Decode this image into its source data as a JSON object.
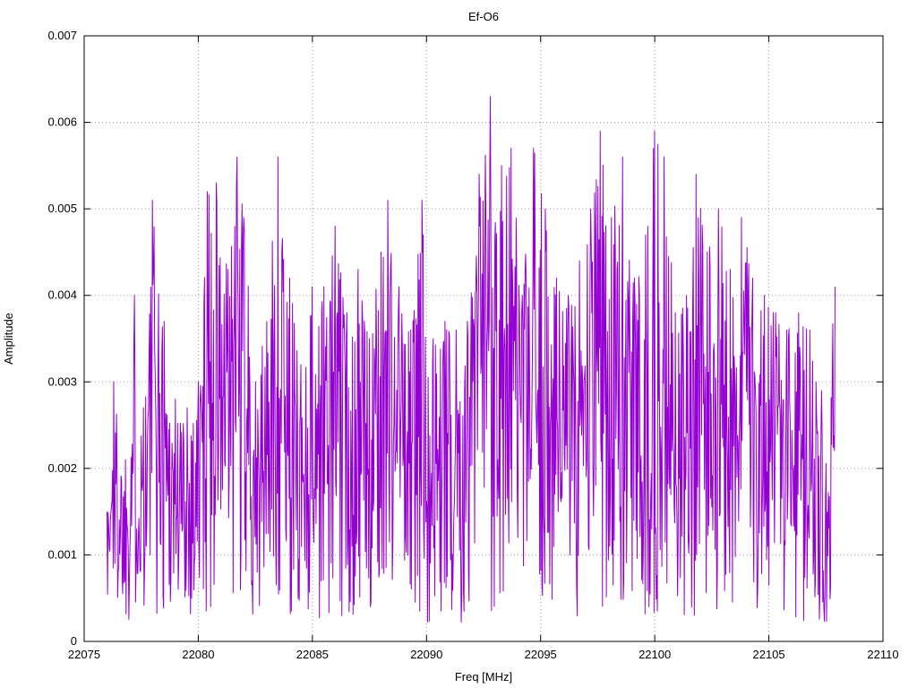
{
  "chart_data": {
    "type": "line",
    "title": "Ef-O6",
    "xlabel": "Freq [MHz]",
    "ylabel": "Amplitude",
    "xlim": [
      22075,
      22110
    ],
    "ylim": [
      0,
      0.007
    ],
    "x_ticks": [
      22075,
      22080,
      22085,
      22090,
      22095,
      22100,
      22105,
      22110
    ],
    "x_tick_labels": [
      "22075",
      "22080",
      "22085",
      "22090",
      "22095",
      "22100",
      "22105",
      "22110"
    ],
    "y_ticks": [
      0,
      0.001,
      0.002,
      0.003,
      0.004,
      0.005,
      0.006,
      0.007
    ],
    "y_tick_labels": [
      "0",
      "0.001",
      "0.002",
      "0.003",
      "0.004",
      "0.005",
      "0.006",
      "0.007"
    ],
    "grid": true,
    "grid_style": "dotted",
    "legend_position": "none",
    "line_color": "#9400d3",
    "background_color": "#ffffff",
    "series": [
      {
        "name": "Ef-O6",
        "description": "Dense noise-like amplitude spectrum; values oscillate between a low floor and an envelope of peak amplitudes read from the plot.",
        "x_start": 22076.0,
        "x_end": 22107.9,
        "n_points": 1300,
        "noise_seed": 1337,
        "min_value": 0.0002,
        "typical_level": 0.0022,
        "peak_value": 0.0063,
        "peak_x": 22092.8,
        "envelope": [
          [
            22076.0,
            0.0015
          ],
          [
            22076.3,
            0.003
          ],
          [
            22076.8,
            0.0021
          ],
          [
            22077.2,
            0.004
          ],
          [
            22077.6,
            0.0027
          ],
          [
            22078.0,
            0.0051
          ],
          [
            22078.5,
            0.0037
          ],
          [
            22079.0,
            0.0028
          ],
          [
            22079.5,
            0.0027
          ],
          [
            22080.0,
            0.003
          ],
          [
            22080.4,
            0.0052
          ],
          [
            22080.8,
            0.0053
          ],
          [
            22081.3,
            0.0043
          ],
          [
            22081.7,
            0.0056
          ],
          [
            22082.0,
            0.0049
          ],
          [
            22082.5,
            0.003
          ],
          [
            22083.0,
            0.0037
          ],
          [
            22083.5,
            0.0056
          ],
          [
            22084.0,
            0.0042
          ],
          [
            22084.5,
            0.0032
          ],
          [
            22085.0,
            0.0041
          ],
          [
            22085.5,
            0.0041
          ],
          [
            22086.0,
            0.0048
          ],
          [
            22086.5,
            0.0038
          ],
          [
            22087.0,
            0.0043
          ],
          [
            22087.5,
            0.0035
          ],
          [
            22088.0,
            0.0045
          ],
          [
            22088.3,
            0.0051
          ],
          [
            22088.8,
            0.0041
          ],
          [
            22089.3,
            0.0036
          ],
          [
            22089.8,
            0.0051
          ],
          [
            22090.3,
            0.0035
          ],
          [
            22090.8,
            0.0037
          ],
          [
            22091.3,
            0.0036
          ],
          [
            22091.8,
            0.0037
          ],
          [
            22092.3,
            0.0054
          ],
          [
            22092.8,
            0.0063
          ],
          [
            22093.3,
            0.0055
          ],
          [
            22093.7,
            0.0057
          ],
          [
            22094.2,
            0.004
          ],
          [
            22094.7,
            0.0057
          ],
          [
            22095.2,
            0.005
          ],
          [
            22095.7,
            0.0042
          ],
          [
            22096.2,
            0.004
          ],
          [
            22096.7,
            0.0044
          ],
          [
            22097.2,
            0.005
          ],
          [
            22097.6,
            0.0059
          ],
          [
            22098.1,
            0.0049
          ],
          [
            22098.6,
            0.0056
          ],
          [
            22099.1,
            0.0042
          ],
          [
            22099.6,
            0.0047
          ],
          [
            22100.0,
            0.0059
          ],
          [
            22100.4,
            0.0056
          ],
          [
            22100.9,
            0.0038
          ],
          [
            22101.4,
            0.004
          ],
          [
            22101.8,
            0.0054
          ],
          [
            22102.3,
            0.0045
          ],
          [
            22102.8,
            0.005
          ],
          [
            22103.3,
            0.0043
          ],
          [
            22103.8,
            0.0049
          ],
          [
            22104.3,
            0.0042
          ],
          [
            22104.8,
            0.004
          ],
          [
            22105.3,
            0.0038
          ],
          [
            22105.8,
            0.0036
          ],
          [
            22106.3,
            0.0038
          ],
          [
            22106.8,
            0.0036
          ],
          [
            22107.3,
            0.0029
          ],
          [
            22107.9,
            0.0041
          ]
        ]
      }
    ]
  }
}
